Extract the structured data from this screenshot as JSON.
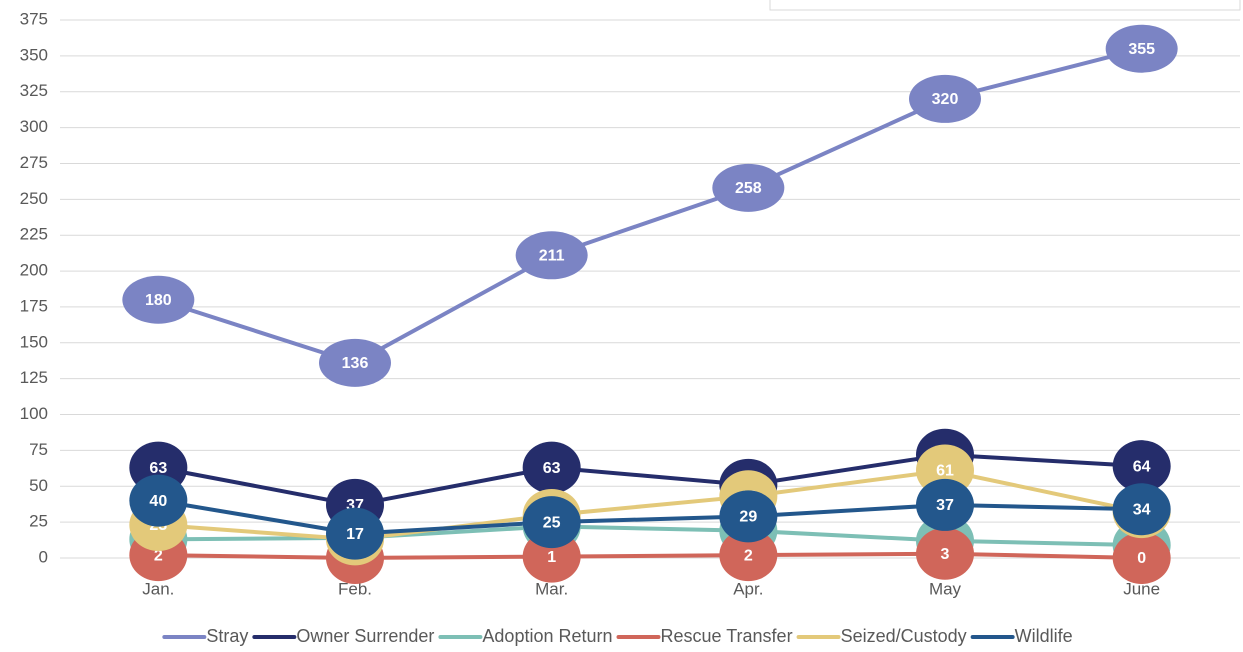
{
  "chart_data": {
    "type": "line",
    "categories": [
      "Jan.",
      "Feb.",
      "Mar.",
      "Apr.",
      "May",
      "June"
    ],
    "series": [
      {
        "name": "Stray",
        "color": "#7b84c4",
        "values": [
          180,
          136,
          211,
          258,
          320,
          355
        ]
      },
      {
        "name": "Owner Surrender",
        "color": "#252d6b",
        "values": [
          63,
          37,
          63,
          51,
          72,
          64
        ]
      },
      {
        "name": "Adoption Return",
        "color": "#7dbfb5",
        "values": [
          13,
          14,
          22,
          19,
          12,
          9
        ]
      },
      {
        "name": "Rescue Transfer",
        "color": "#d0665a",
        "values": [
          2,
          0,
          1,
          2,
          3,
          0
        ]
      },
      {
        "name": "Seized/Custody",
        "color": "#e3c97a",
        "values": [
          23,
          13,
          30,
          43,
          61,
          32
        ]
      },
      {
        "name": "Wildlife",
        "color": "#23578c",
        "values": [
          40,
          17,
          25,
          29,
          37,
          34
        ]
      }
    ],
    "ylim": [
      0,
      375
    ],
    "yticks": [
      0,
      25,
      50,
      75,
      100,
      125,
      150,
      175,
      200,
      225,
      250,
      275,
      300,
      325,
      350,
      375
    ],
    "grid": true,
    "legend": "bottom"
  }
}
